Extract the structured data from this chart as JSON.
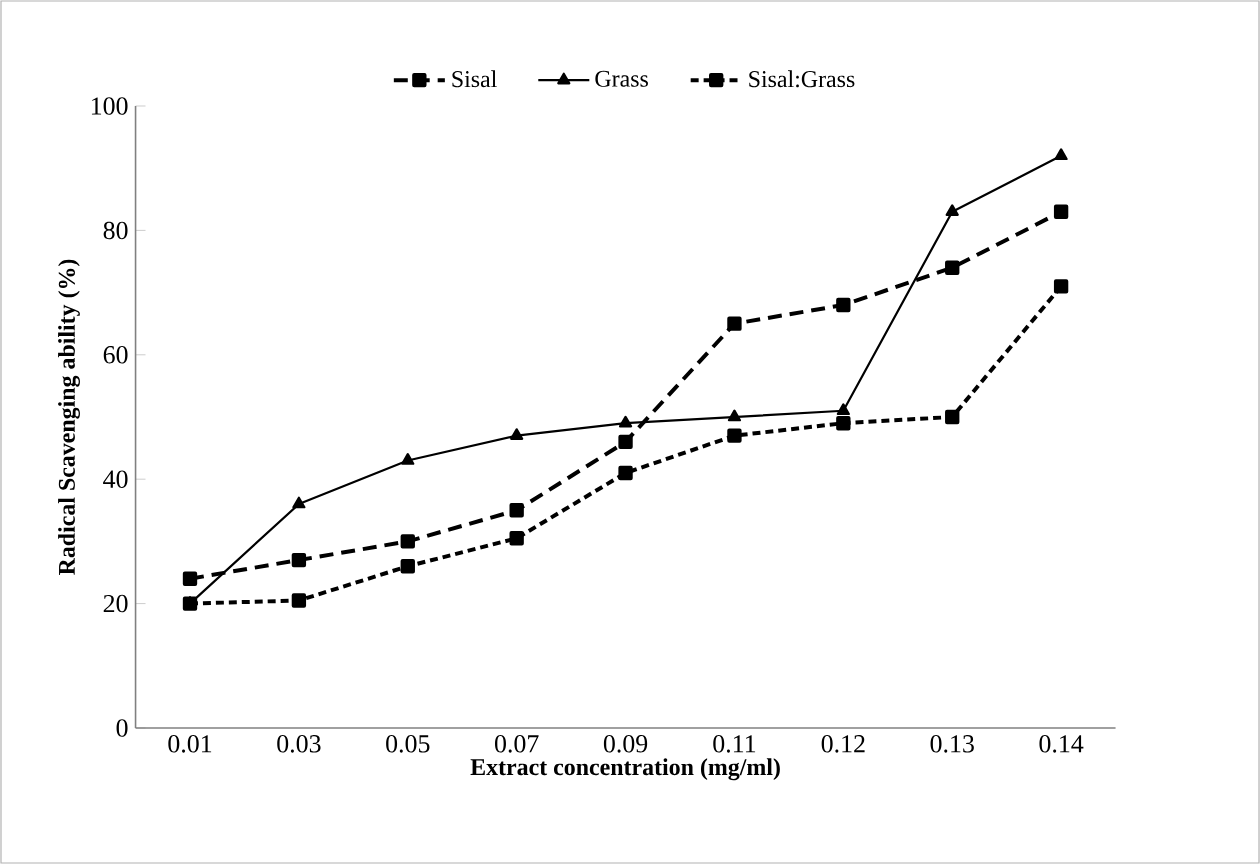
{
  "chart_data": {
    "type": "line",
    "xlabel": "Extract concentration (mg/ml)",
    "ylabel": "Radical Scavenging ability (%)",
    "categories": [
      "0.01",
      "0.03",
      "0.05",
      "0.07",
      "0.09",
      "0.11",
      "0.12",
      "0.13",
      "0.14"
    ],
    "series": [
      {
        "name": "Sisal",
        "color": "#000000",
        "marker": "square",
        "line_style": "dashed",
        "values": [
          24,
          27,
          30,
          35,
          46,
          65,
          68,
          74,
          83
        ]
      },
      {
        "name": "Grass",
        "color": "#000000",
        "marker": "triangle",
        "line_style": "solid",
        "values": [
          20,
          36,
          43,
          47,
          49,
          50,
          51,
          83,
          92
        ]
      },
      {
        "name": "Sisal:Grass",
        "color": "#000000",
        "marker": "square",
        "line_style": "dotted",
        "values": [
          20,
          20.5,
          26,
          30.5,
          41,
          47,
          49,
          50,
          71
        ]
      }
    ],
    "ylim": [
      0,
      100
    ],
    "yticks": [
      0,
      20,
      40,
      60,
      80,
      100
    ],
    "grid": false,
    "legend": "top"
  }
}
